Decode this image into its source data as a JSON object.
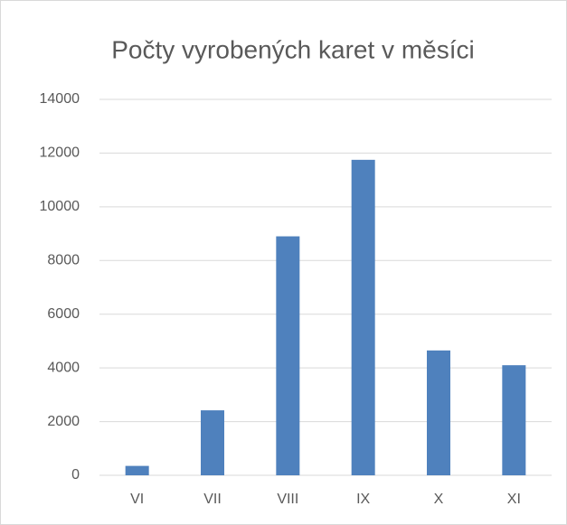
{
  "chart_data": {
    "type": "bar",
    "title": "Počty vyrobených karet v měsíci",
    "categories": [
      "VI",
      "VII",
      "VIII",
      "IX",
      "X",
      "XI"
    ],
    "values": [
      350,
      2420,
      8900,
      11750,
      4650,
      4100
    ],
    "color": "#4f81bd",
    "ylim": [
      0,
      14000
    ],
    "yticks": [
      0,
      2000,
      4000,
      6000,
      8000,
      10000,
      12000,
      14000
    ],
    "grid": true
  }
}
